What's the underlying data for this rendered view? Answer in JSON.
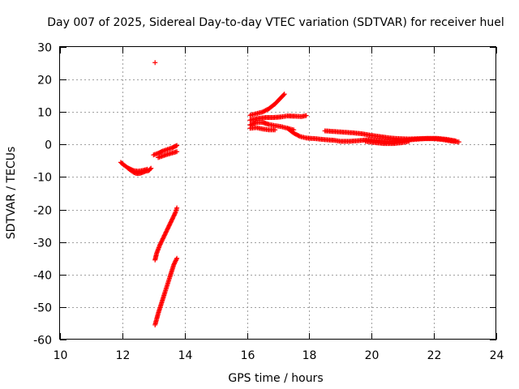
{
  "chart_data": {
    "type": "scatter",
    "title": "Day 007 of 2025, Sidereal Day-to-day VTEC variation (SDTVAR) for receiver huel",
    "xlabel": "GPS time / hours",
    "ylabel": "SDTVAR / TECUs",
    "xlim": [
      10,
      24
    ],
    "ylim": [
      -60,
      30
    ],
    "xticks": [
      10,
      12,
      14,
      16,
      18,
      20,
      22,
      24
    ],
    "yticks": [
      -60,
      -50,
      -40,
      -30,
      -20,
      -10,
      0,
      10,
      20,
      30
    ],
    "grid": true,
    "marker": "+",
    "series": [
      {
        "name": "SDTVAR",
        "color": "#ff0000",
        "segments": [
          [
            [
              11.95,
              -5.5
            ],
            [
              12.05,
              -6.3
            ],
            [
              12.15,
              -7.0
            ],
            [
              12.25,
              -7.8
            ],
            [
              12.35,
              -8.5
            ],
            [
              12.45,
              -8.9
            ],
            [
              12.55,
              -8.9
            ],
            [
              12.65,
              -8.6
            ],
            [
              12.75,
              -8.2
            ],
            [
              12.85,
              -8.0
            ],
            [
              12.92,
              -7.3
            ]
          ],
          [
            [
              12.2,
              -7.3
            ],
            [
              12.35,
              -8.0
            ],
            [
              12.5,
              -8.2
            ],
            [
              12.65,
              -8.0
            ],
            [
              12.8,
              -7.6
            ]
          ],
          [
            [
              13.0,
              -3.2
            ],
            [
              13.15,
              -2.7
            ],
            [
              13.3,
              -2.0
            ],
            [
              13.45,
              -1.5
            ],
            [
              13.6,
              -1.0
            ],
            [
              13.75,
              -0.3
            ]
          ],
          [
            [
              13.15,
              -4.0
            ],
            [
              13.3,
              -3.5
            ],
            [
              13.45,
              -3.0
            ],
            [
              13.6,
              -2.6
            ],
            [
              13.75,
              -2.2
            ]
          ],
          [
            [
              13.05,
              -35.5
            ],
            [
              13.1,
              -33.5
            ],
            [
              13.2,
              -31.0
            ],
            [
              13.3,
              -29.0
            ],
            [
              13.4,
              -27.0
            ],
            [
              13.5,
              -25.0
            ],
            [
              13.6,
              -23.0
            ],
            [
              13.7,
              -21.0
            ],
            [
              13.75,
              -19.5
            ]
          ],
          [
            [
              13.05,
              -55.5
            ],
            [
              13.15,
              -52.0
            ],
            [
              13.25,
              -49.0
            ],
            [
              13.35,
              -46.0
            ],
            [
              13.45,
              -43.0
            ],
            [
              13.55,
              -40.0
            ],
            [
              13.65,
              -37.0
            ],
            [
              13.75,
              -35.0
            ]
          ],
          [
            [
              16.1,
              9.0
            ],
            [
              16.3,
              9.5
            ],
            [
              16.5,
              10.0
            ],
            [
              16.7,
              11.0
            ],
            [
              16.9,
              12.5
            ],
            [
              17.05,
              14.0
            ],
            [
              17.2,
              15.5
            ]
          ],
          [
            [
              16.1,
              7.5
            ],
            [
              16.35,
              8.0
            ],
            [
              16.6,
              8.3
            ],
            [
              16.85,
              8.3
            ],
            [
              17.1,
              8.5
            ],
            [
              17.3,
              8.8
            ],
            [
              17.55,
              8.7
            ],
            [
              17.75,
              8.6
            ],
            [
              17.9,
              8.9
            ]
          ],
          [
            [
              16.1,
              6.0
            ],
            [
              16.3,
              6.8
            ],
            [
              16.5,
              6.8
            ],
            [
              16.7,
              6.2
            ],
            [
              16.9,
              5.8
            ],
            [
              17.1,
              5.5
            ],
            [
              17.3,
              5.0
            ],
            [
              17.5,
              4.5
            ]
          ],
          [
            [
              16.1,
              5.0
            ],
            [
              16.3,
              5.2
            ],
            [
              16.5,
              4.8
            ],
            [
              16.7,
              4.5
            ],
            [
              16.9,
              4.5
            ]
          ],
          [
            [
              17.3,
              5.0
            ],
            [
              17.5,
              3.5
            ],
            [
              17.7,
              2.5
            ],
            [
              17.9,
              2.0
            ],
            [
              18.2,
              1.8
            ],
            [
              18.5,
              1.5
            ],
            [
              18.8,
              1.3
            ],
            [
              19.0,
              1.0
            ],
            [
              19.3,
              1.0
            ],
            [
              19.6,
              1.2
            ],
            [
              19.9,
              1.5
            ],
            [
              20.2,
              1.3
            ],
            [
              20.5,
              1.0
            ],
            [
              20.8,
              1.0
            ],
            [
              21.1,
              1.3
            ],
            [
              21.4,
              1.6
            ],
            [
              21.7,
              1.8
            ],
            [
              22.0,
              1.8
            ],
            [
              22.3,
              1.5
            ],
            [
              22.6,
              1.0
            ],
            [
              22.8,
              0.8
            ]
          ],
          [
            [
              18.5,
              4.2
            ],
            [
              18.8,
              4.0
            ],
            [
              19.1,
              3.8
            ],
            [
              19.4,
              3.6
            ],
            [
              19.7,
              3.3
            ],
            [
              20.0,
              2.8
            ],
            [
              20.3,
              2.4
            ],
            [
              20.6,
              2.0
            ],
            [
              20.9,
              1.8
            ],
            [
              21.2,
              1.7
            ],
            [
              21.5,
              1.8
            ],
            [
              21.8,
              1.9
            ],
            [
              22.1,
              1.9
            ],
            [
              22.4,
              1.6
            ],
            [
              22.7,
              1.1
            ]
          ],
          [
            [
              19.8,
              1.0
            ],
            [
              20.1,
              0.6
            ],
            [
              20.4,
              0.3
            ],
            [
              20.7,
              0.3
            ],
            [
              21.0,
              0.6
            ],
            [
              21.2,
              1.0
            ]
          ]
        ],
        "points": [
          [
            13.05,
            25.2
          ]
        ]
      }
    ]
  }
}
